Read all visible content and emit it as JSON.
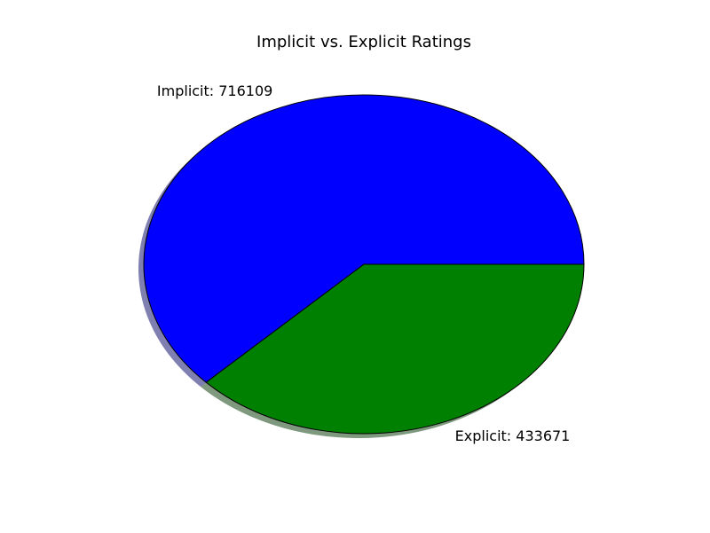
{
  "chart_data": {
    "type": "pie",
    "title": "Implicit vs. Explicit Ratings",
    "categories": [
      "Implicit",
      "Explicit"
    ],
    "values": [
      716109,
      433671
    ],
    "slice_labels": [
      "Implicit: 716109",
      "Explicit: 433671"
    ],
    "colors": [
      "#0000ff",
      "#008000"
    ],
    "shadow": true,
    "start_angle_deg": 0,
    "legend": "none"
  }
}
